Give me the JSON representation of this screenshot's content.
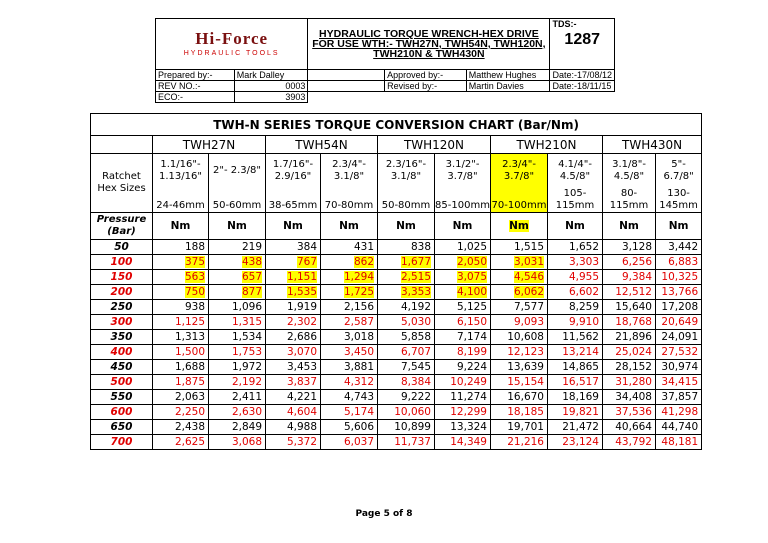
{
  "header": {
    "logo": "Hi-Force",
    "logo_sub": "HYDRAULIC TOOLS",
    "title": "HYDRAULIC TORQUE WRENCH-HEX DRIVE FOR USE WTH:- TWH27N, TWH54N, TWH120N, TWH210N & TWH430N",
    "tds_label": "TDS:-",
    "tds": "1287",
    "prepared_label": "Prepared by:-",
    "prepared": "Mark Dalley",
    "approved_label": "Approved by:-",
    "approved": "Matthew Hughes",
    "date1": "Date:-17/08/12",
    "rev_label": "REV NO.:-",
    "rev": "0003",
    "revised_label": "Revised by:-",
    "revised": "Martin Davies",
    "date2": "Date:-18/11/15",
    "eco_label": "ECO:-",
    "eco": "3903"
  },
  "table": {
    "title": "TWH-N SERIES TORQUE CONVERSION CHART (Bar/Nm)",
    "models": [
      "TWH27N",
      "TWH54N",
      "TWH120N",
      "TWH210N",
      "TWH430N"
    ],
    "hex_label": "Ratchet Hex Sizes",
    "hex": [
      {
        "inch": "1.1/16\"- 1.13/16\"",
        "mm": "24-46mm"
      },
      {
        "inch": "2\"- 2.3/8\"",
        "mm": "50-60mm"
      },
      {
        "inch": "1.7/16\"- 2.9/16\"",
        "mm": "38-65mm"
      },
      {
        "inch": "2.3/4\"- 3.1/8\"",
        "mm": "70-80mm"
      },
      {
        "inch": "2.3/16\"- 3.1/8\"",
        "mm": "50-80mm"
      },
      {
        "inch": "3.1/2\"- 3.7/8\"",
        "mm": "85-100mm"
      },
      {
        "inch": "2.3/4\"- 3.7/8\"",
        "mm": "70-100mm",
        "highlight": true
      },
      {
        "inch": "4.1/4\"- 4.5/8\"",
        "mm": "105-115mm"
      },
      {
        "inch": "3.1/8\"- 4.5/8\"",
        "mm": "80-115mm"
      },
      {
        "inch": "5\"- 6.7/8\"",
        "mm": "130-145mm"
      }
    ],
    "pressure_label": "Pressure (Bar)",
    "unit": "Nm",
    "highlight_columns": 7,
    "rows": [
      {
        "pressure": "50",
        "values": [
          "188",
          "219",
          "384",
          "431",
          "838",
          "1,025",
          "1,515",
          "1,652",
          "3,128",
          "3,442"
        ]
      },
      {
        "pressure": "100",
        "red": true,
        "highlight": true,
        "values": [
          "375",
          "438",
          "767",
          "862",
          "1,677",
          "2,050",
          "3,031",
          "3,303",
          "6,256",
          "6,883"
        ]
      },
      {
        "pressure": "150",
        "red": true,
        "highlight": true,
        "values": [
          "563",
          "657",
          "1,151",
          "1,294",
          "2,515",
          "3,075",
          "4,546",
          "4,955",
          "9,384",
          "10,325"
        ]
      },
      {
        "pressure": "200",
        "red": true,
        "highlight": true,
        "values": [
          "750",
          "877",
          "1,535",
          "1,725",
          "3,353",
          "4,100",
          "6,062",
          "6,602",
          "12,512",
          "13,766"
        ]
      },
      {
        "pressure": "250",
        "values": [
          "938",
          "1,096",
          "1,919",
          "2,156",
          "4,192",
          "5,125",
          "7,577",
          "8,259",
          "15,640",
          "17,208"
        ]
      },
      {
        "pressure": "300",
        "red": true,
        "values": [
          "1,125",
          "1,315",
          "2,302",
          "2,587",
          "5,030",
          "6,150",
          "9,093",
          "9,910",
          "18,768",
          "20,649"
        ]
      },
      {
        "pressure": "350",
        "values": [
          "1,313",
          "1,534",
          "2,686",
          "3,018",
          "5,858",
          "7,174",
          "10,608",
          "11,562",
          "21,896",
          "24,091"
        ]
      },
      {
        "pressure": "400",
        "red": true,
        "values": [
          "1,500",
          "1,753",
          "3,070",
          "3,450",
          "6,707",
          "8,199",
          "12,123",
          "13,214",
          "25,024",
          "27,532"
        ]
      },
      {
        "pressure": "450",
        "values": [
          "1,688",
          "1,972",
          "3,453",
          "3,881",
          "7,545",
          "9,224",
          "13,639",
          "14,865",
          "28,152",
          "30,974"
        ]
      },
      {
        "pressure": "500",
        "red": true,
        "values": [
          "1,875",
          "2,192",
          "3,837",
          "4,312",
          "8,384",
          "10,249",
          "15,154",
          "16,517",
          "31,280",
          "34,415"
        ]
      },
      {
        "pressure": "550",
        "values": [
          "2,063",
          "2,411",
          "4,221",
          "4,743",
          "9,222",
          "11,274",
          "16,670",
          "18,169",
          "34,408",
          "37,857"
        ]
      },
      {
        "pressure": "600",
        "red": true,
        "values": [
          "2,250",
          "2,630",
          "4,604",
          "5,174",
          "10,060",
          "12,299",
          "18,185",
          "19,821",
          "37,536",
          "41,298"
        ]
      },
      {
        "pressure": "650",
        "values": [
          "2,438",
          "2,849",
          "4,988",
          "5,606",
          "10,899",
          "13,324",
          "19,701",
          "21,472",
          "40,664",
          "44,740"
        ]
      },
      {
        "pressure": "700",
        "red": true,
        "values": [
          "2,625",
          "3,068",
          "5,372",
          "6,037",
          "11,737",
          "14,349",
          "21,216",
          "23,124",
          "43,792",
          "48,181"
        ]
      }
    ]
  },
  "footer": "Page 5 of 8"
}
